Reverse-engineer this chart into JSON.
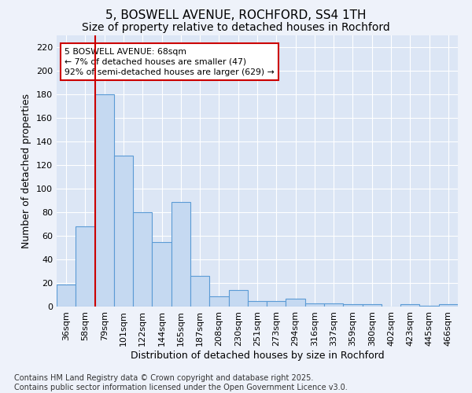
{
  "title1": "5, BOSWELL AVENUE, ROCHFORD, SS4 1TH",
  "title2": "Size of property relative to detached houses in Rochford",
  "xlabel": "Distribution of detached houses by size in Rochford",
  "ylabel": "Number of detached properties",
  "categories": [
    "36sqm",
    "58sqm",
    "79sqm",
    "101sqm",
    "122sqm",
    "144sqm",
    "165sqm",
    "187sqm",
    "208sqm",
    "230sqm",
    "251sqm",
    "273sqm",
    "294sqm",
    "316sqm",
    "337sqm",
    "359sqm",
    "380sqm",
    "402sqm",
    "423sqm",
    "445sqm",
    "466sqm"
  ],
  "values": [
    19,
    68,
    180,
    128,
    80,
    55,
    89,
    26,
    9,
    14,
    5,
    5,
    7,
    3,
    3,
    2,
    2,
    0,
    2,
    1,
    2
  ],
  "bar_color": "#c5d9f1",
  "bar_edge_color": "#5b9bd5",
  "redline_color": "#cc0000",
  "redline_x": 1.5,
  "annotation_title": "5 BOSWELL AVENUE: 68sqm",
  "annotation_line1": "← 7% of detached houses are smaller (47)",
  "annotation_line2": "92% of semi-detached houses are larger (629) →",
  "annotation_box_color": "#ffffff",
  "annotation_box_edge": "#cc0000",
  "ylim": [
    0,
    230
  ],
  "yticks": [
    0,
    20,
    40,
    60,
    80,
    100,
    120,
    140,
    160,
    180,
    200,
    220
  ],
  "bg_color": "#dce6f5",
  "fig_bg_color": "#eef2fa",
  "footer": "Contains HM Land Registry data © Crown copyright and database right 2025.\nContains public sector information licensed under the Open Government Licence v3.0.",
  "title_fontsize": 11,
  "subtitle_fontsize": 10,
  "tick_fontsize": 8,
  "label_fontsize": 9,
  "footer_fontsize": 7
}
